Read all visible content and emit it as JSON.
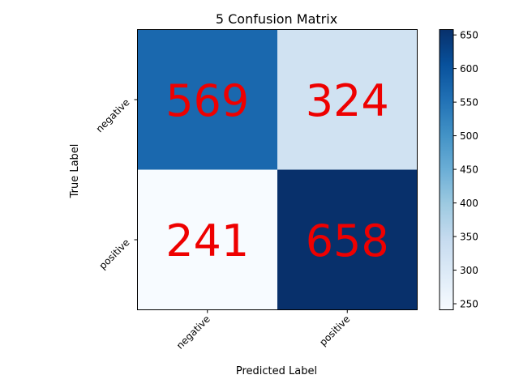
{
  "chart_data": {
    "type": "heatmap",
    "title": "5 Confusion Matrix",
    "xlabel": "Predicted Label",
    "ylabel": "True Label",
    "x_categories": [
      "negative",
      "positive"
    ],
    "y_categories": [
      "negative",
      "positive"
    ],
    "values": [
      [
        569,
        324
      ],
      [
        241,
        658
      ]
    ],
    "colormap": "Blues",
    "color_range": [
      241,
      658
    ],
    "annotation_color": "#ee0000",
    "colorbar": {
      "ticks": [
        "250",
        "300",
        "350",
        "400",
        "450",
        "500",
        "550",
        "600",
        "650"
      ],
      "range": [
        241,
        658
      ]
    }
  }
}
